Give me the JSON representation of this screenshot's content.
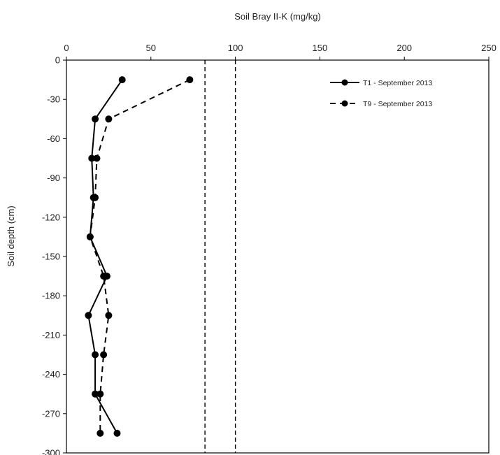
{
  "chart_data": {
    "type": "line",
    "xlabel": "Soil Bray II-K (mg/kg)",
    "ylabel": "Soil depth (cm)",
    "xlim": [
      0,
      250
    ],
    "ylim": [
      -300,
      0
    ],
    "x_ticks": [
      0,
      50,
      100,
      150,
      200,
      250
    ],
    "y_ticks": [
      0,
      -30,
      -60,
      -90,
      -120,
      -150,
      -180,
      -210,
      -240,
      -270,
      -300
    ],
    "x_axis_position": "top",
    "grid": false,
    "legend_position": "top-right",
    "reference_lines": [
      {
        "axis": "x",
        "value": 82,
        "style": "dashed"
      },
      {
        "axis": "x",
        "value": 100,
        "style": "dashed"
      }
    ],
    "series": [
      {
        "name": "T1 - September 2013",
        "line_style": "solid",
        "marker": "circle",
        "color": "#000000",
        "points": [
          {
            "x": 33,
            "y": -15
          },
          {
            "x": 17,
            "y": -45
          },
          {
            "x": 15,
            "y": -75
          },
          {
            "x": 16,
            "y": -105
          },
          {
            "x": 14,
            "y": -135
          },
          {
            "x": 24,
            "y": -165
          },
          {
            "x": 13,
            "y": -195
          },
          {
            "x": 17,
            "y": -225
          },
          {
            "x": 17,
            "y": -255
          },
          {
            "x": 30,
            "y": -285
          }
        ]
      },
      {
        "name": "T9 - September 2013",
        "line_style": "dashed",
        "marker": "circle",
        "color": "#000000",
        "points": [
          {
            "x": 73,
            "y": -15
          },
          {
            "x": 25,
            "y": -45
          },
          {
            "x": 18,
            "y": -75
          },
          {
            "x": 17,
            "y": -105
          },
          {
            "x": 14,
            "y": -135
          },
          {
            "x": 22,
            "y": -165
          },
          {
            "x": 25,
            "y": -195
          },
          {
            "x": 22,
            "y": -225
          },
          {
            "x": 20,
            "y": -255
          },
          {
            "x": 20,
            "y": -285
          }
        ]
      }
    ]
  }
}
